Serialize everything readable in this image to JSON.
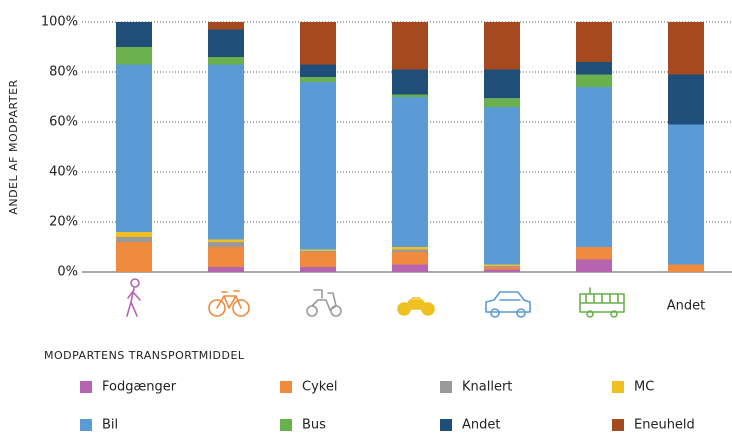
{
  "chart_data": {
    "type": "stacked_bar",
    "y_axis_label": "ANDEL AF MODPARTER",
    "legend_title": "MODPARTENS TRANSPORTMIDDEL",
    "categories": [
      null,
      null,
      null,
      null,
      null,
      null,
      "Andet"
    ],
    "series": [
      {
        "name": "Fodgænger",
        "color": "#b565b0",
        "values": [
          0,
          2,
          2,
          3,
          1,
          5,
          0
        ]
      },
      {
        "name": "Cykel",
        "color": "#f08a3c",
        "values": [
          12,
          8,
          6,
          5,
          1,
          5,
          3
        ]
      },
      {
        "name": "Knallert",
        "color": "#9a9a9a",
        "values": [
          2,
          2,
          0.5,
          1,
          0.5,
          0,
          0
        ]
      },
      {
        "name": "MC",
        "color": "#f0c020",
        "values": [
          2,
          1,
          0.5,
          1,
          0.5,
          0,
          0
        ]
      },
      {
        "name": "Bil",
        "color": "#5b9bd5",
        "values": [
          67,
          70,
          67,
          60,
          63,
          64,
          56
        ]
      },
      {
        "name": "Bus",
        "color": "#6ab04c",
        "values": [
          7,
          3,
          2,
          1,
          3.5,
          5,
          0
        ]
      },
      {
        "name": "Andet",
        "color": "#1f4e79",
        "values": [
          10,
          11,
          5,
          10,
          11.5,
          5,
          20
        ]
      },
      {
        "name": "Eneuheld",
        "color": "#a5491e",
        "values": [
          0,
          3,
          17,
          19,
          19,
          16,
          21
        ]
      }
    ],
    "ylim": [
      0,
      100
    ],
    "yticks": [
      {
        "value": 0,
        "label": "0%"
      },
      {
        "value": 20,
        "label": "20%"
      },
      {
        "value": 40,
        "label": "40%"
      },
      {
        "value": 60,
        "label": "60%"
      },
      {
        "value": 80,
        "label": "80%"
      },
      {
        "value": 100,
        "label": "100%"
      }
    ],
    "grid": true
  }
}
